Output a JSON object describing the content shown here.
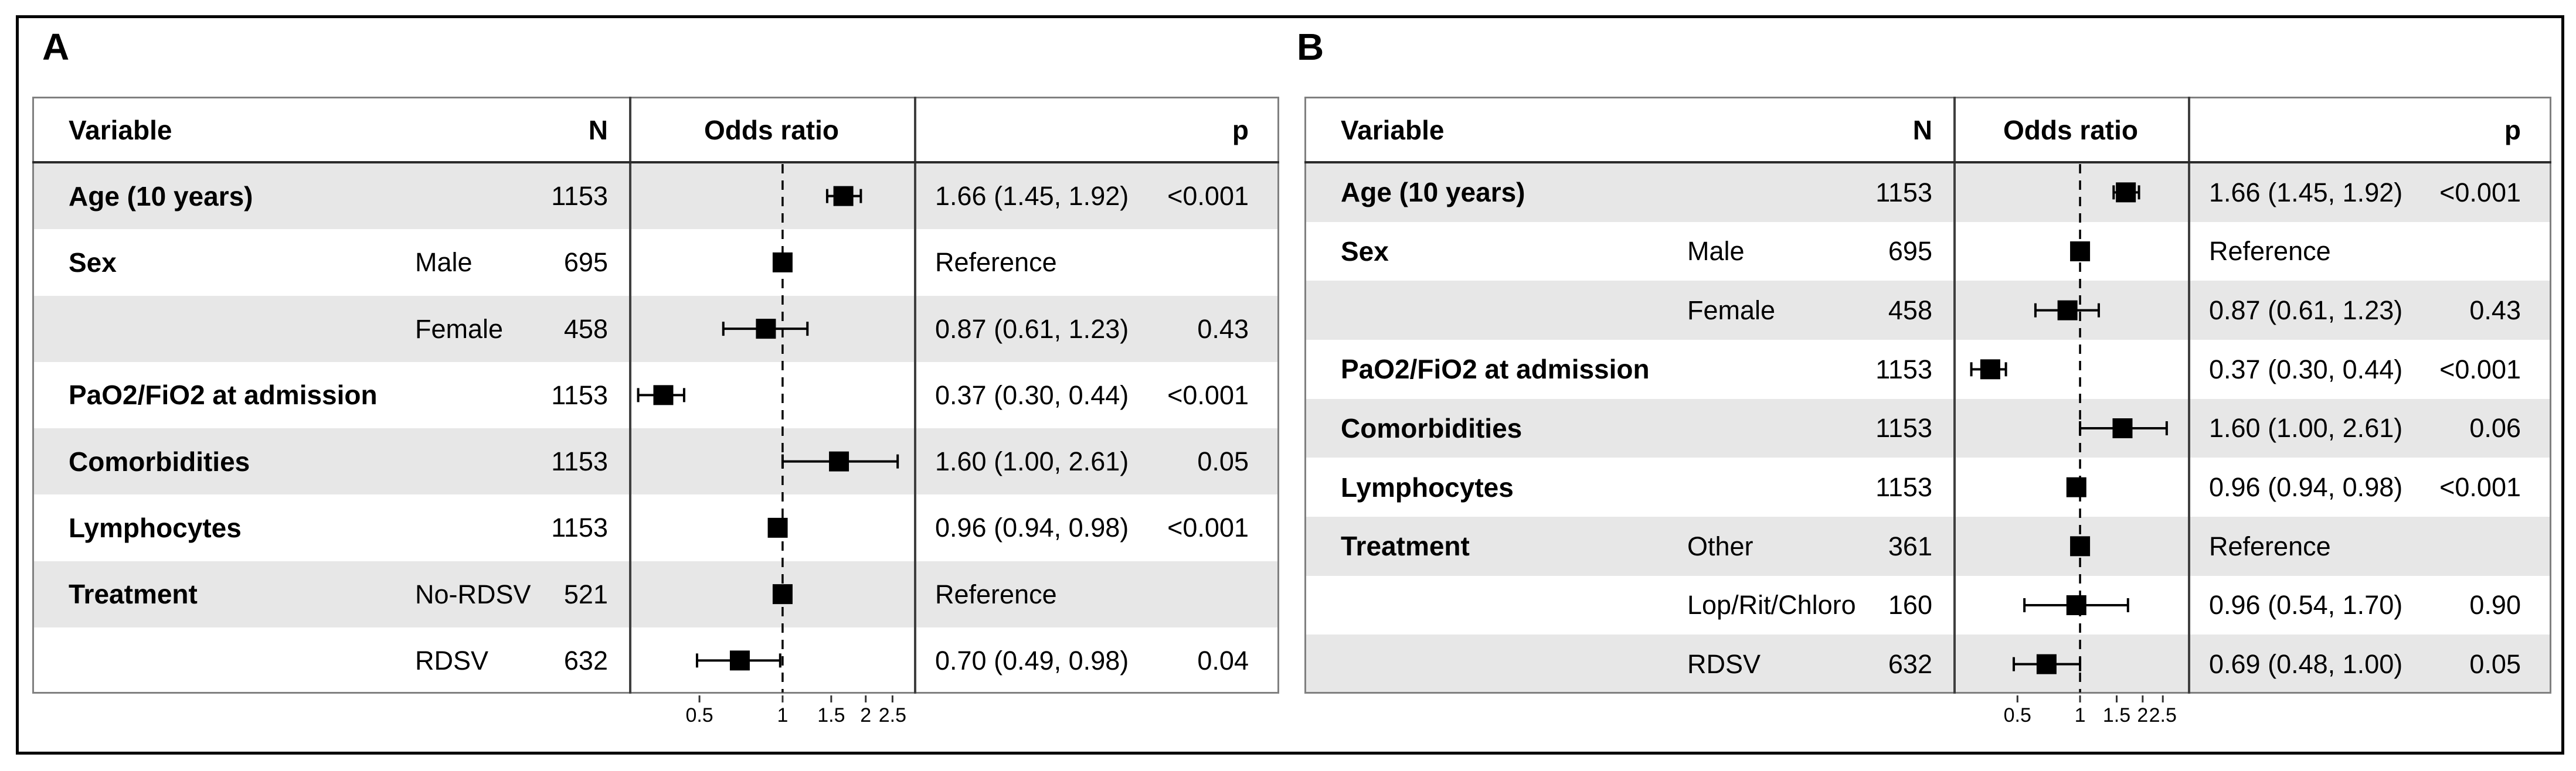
{
  "figure": {
    "panel_labels": [
      "A",
      "B"
    ]
  },
  "colors": {
    "background": "#ffffff",
    "stripe": "#e7e7e7",
    "table_border": "#808080",
    "header_rule": "#2b2b2b",
    "separator": "#3f3f3f",
    "axis": "#333333",
    "marker": "#000000",
    "refline": "#000000",
    "frame": "#000000",
    "text": "#000000"
  },
  "chart_data": [
    {
      "type": "scatter",
      "subtype": "forest_plot",
      "panel_label": "A",
      "columns": {
        "variable": "Variable",
        "n": "N",
        "odds_ratio": "Odds ratio",
        "p": "p"
      },
      "axis": {
        "scale": "log",
        "xlim": [
          0.278,
          2.99
        ],
        "ticks": [
          0.5,
          1,
          1.5,
          2,
          2.5
        ],
        "tick_labels": [
          "0.5",
          "1",
          "1.5",
          "2",
          "2.5"
        ],
        "refline": 1,
        "grid": false
      },
      "rows": [
        {
          "variable": "Age (10 years)",
          "level": "",
          "n": "1153",
          "or": 1.66,
          "ci_low": 1.45,
          "ci_high": 1.92,
          "or_label": "1.66 (1.45, 1.92)",
          "p": "<0.001",
          "reference": false
        },
        {
          "variable": "Sex",
          "level": "Male",
          "n": "695",
          "or": 1,
          "ci_low": null,
          "ci_high": null,
          "or_label": "Reference",
          "p": "",
          "reference": true
        },
        {
          "variable": "",
          "level": "Female",
          "n": "458",
          "or": 0.87,
          "ci_low": 0.61,
          "ci_high": 1.23,
          "or_label": "0.87 (0.61, 1.23)",
          "p": "0.43",
          "reference": false
        },
        {
          "variable": "PaO2/FiO2 at admission",
          "level": "",
          "n": "1153",
          "or": 0.37,
          "ci_low": 0.3,
          "ci_high": 0.44,
          "or_label": "0.37 (0.30, 0.44)",
          "p": "<0.001",
          "reference": false
        },
        {
          "variable": "Comorbidities",
          "level": "",
          "n": "1153",
          "or": 1.6,
          "ci_low": 1.0,
          "ci_high": 2.61,
          "or_label": "1.60 (1.00, 2.61)",
          "p": "0.05",
          "reference": false
        },
        {
          "variable": "Lymphocytes",
          "level": "",
          "n": "1153",
          "or": 0.96,
          "ci_low": 0.94,
          "ci_high": 0.98,
          "or_label": "0.96 (0.94, 0.98)",
          "p": "<0.001",
          "reference": false
        },
        {
          "variable": "Treatment",
          "level": "No-RDSV",
          "n": "521",
          "or": 1,
          "ci_low": null,
          "ci_high": null,
          "or_label": "Reference",
          "p": "",
          "reference": true
        },
        {
          "variable": "",
          "level": "RDSV",
          "n": "632",
          "or": 0.7,
          "ci_low": 0.49,
          "ci_high": 0.98,
          "or_label": "0.70 (0.49, 0.98)",
          "p": "0.04",
          "reference": false
        }
      ]
    },
    {
      "type": "scatter",
      "subtype": "forest_plot",
      "panel_label": "B",
      "columns": {
        "variable": "Variable",
        "n": "N",
        "odds_ratio": "Odds ratio",
        "p": "p"
      },
      "axis": {
        "scale": "log",
        "xlim": [
          0.246,
          3.3
        ],
        "ticks": [
          0.5,
          1,
          1.5,
          2,
          2.5
        ],
        "tick_labels": [
          "0.5",
          "1",
          "1.5",
          "2",
          "2.5"
        ],
        "refline": 1,
        "grid": false
      },
      "rows": [
        {
          "variable": "Age (10 years)",
          "level": "",
          "n": "1153",
          "or": 1.66,
          "ci_low": 1.45,
          "ci_high": 1.92,
          "or_label": "1.66 (1.45, 1.92)",
          "p": "<0.001",
          "reference": false
        },
        {
          "variable": "Sex",
          "level": "Male",
          "n": "695",
          "or": 1,
          "ci_low": null,
          "ci_high": null,
          "or_label": "Reference",
          "p": "",
          "reference": true
        },
        {
          "variable": "",
          "level": "Female",
          "n": "458",
          "or": 0.87,
          "ci_low": 0.61,
          "ci_high": 1.23,
          "or_label": "0.87 (0.61, 1.23)",
          "p": "0.43",
          "reference": false
        },
        {
          "variable": "PaO2/FiO2 at admission",
          "level": "",
          "n": "1153",
          "or": 0.37,
          "ci_low": 0.3,
          "ci_high": 0.44,
          "or_label": "0.37 (0.30, 0.44)",
          "p": "<0.001",
          "reference": false
        },
        {
          "variable": "Comorbidities",
          "level": "",
          "n": "1153",
          "or": 1.6,
          "ci_low": 1.0,
          "ci_high": 2.61,
          "or_label": "1.60 (1.00, 2.61)",
          "p": "0.06",
          "reference": false
        },
        {
          "variable": "Lymphocytes",
          "level": "",
          "n": "1153",
          "or": 0.96,
          "ci_low": 0.94,
          "ci_high": 0.98,
          "or_label": "0.96 (0.94, 0.98)",
          "p": "<0.001",
          "reference": false
        },
        {
          "variable": "Treatment",
          "level": "Other",
          "n": "361",
          "or": 1,
          "ci_low": null,
          "ci_high": null,
          "or_label": "Reference",
          "p": "",
          "reference": true
        },
        {
          "variable": "",
          "level": "Lop/Rit/Chloro",
          "n": "160",
          "or": 0.96,
          "ci_low": 0.54,
          "ci_high": 1.7,
          "or_label": "0.96 (0.54, 1.70)",
          "p": "0.90",
          "reference": false
        },
        {
          "variable": "",
          "level": "RDSV",
          "n": "632",
          "or": 0.69,
          "ci_low": 0.48,
          "ci_high": 1.0,
          "or_label": "0.69 (0.48, 1.00)",
          "p": "0.05",
          "reference": false
        }
      ]
    }
  ]
}
